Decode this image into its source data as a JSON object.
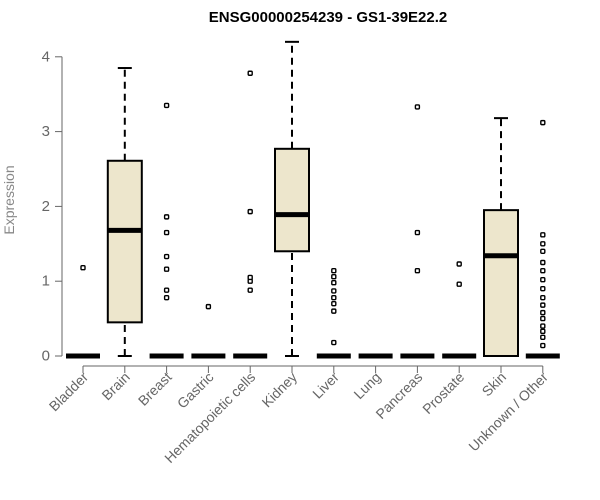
{
  "chart_data": {
    "type": "boxplot",
    "title": "ENSG00000254239 - GS1-39E22.2",
    "ylabel": "Expression",
    "xlabel": "",
    "ylim": [
      0,
      4.2
    ],
    "yticks": [
      "0",
      "1",
      "2",
      "3",
      "4"
    ],
    "categories": [
      "Bladder",
      "Brain",
      "Breast",
      "Gastric",
      "Hematopoietic cells",
      "Kidney",
      "Liver",
      "Lung",
      "Pancreas",
      "Prostate",
      "Skin",
      "Unknown / Other"
    ],
    "box_fill": "#ede6cc",
    "series": [
      {
        "category": "Bladder",
        "min": 0,
        "q1": 0,
        "median": 0,
        "q3": 0,
        "max": 0,
        "outliers": [
          1.18
        ]
      },
      {
        "category": "Brain",
        "min": 0,
        "q1": 0.45,
        "median": 1.68,
        "q3": 2.61,
        "max": 3.85,
        "outliers": []
      },
      {
        "category": "Breast",
        "min": 0,
        "q1": 0,
        "median": 0,
        "q3": 0,
        "max": 0,
        "outliers": [
          0.78,
          0.88,
          1.16,
          1.33,
          1.65,
          1.86,
          3.35
        ]
      },
      {
        "category": "Gastric",
        "min": 0,
        "q1": 0,
        "median": 0,
        "q3": 0,
        "max": 0,
        "outliers": [
          0.66
        ]
      },
      {
        "category": "Hematopoietic cells",
        "min": 0,
        "q1": 0,
        "median": 0,
        "q3": 0,
        "max": 0,
        "outliers": [
          0.88,
          1.0,
          1.05,
          1.93,
          3.78
        ]
      },
      {
        "category": "Kidney",
        "min": 0,
        "q1": 1.4,
        "median": 1.89,
        "q3": 2.77,
        "max": 4.2,
        "outliers": []
      },
      {
        "category": "Liver",
        "min": 0,
        "q1": 0,
        "median": 0,
        "q3": 0,
        "max": 0,
        "outliers": [
          0.18,
          0.6,
          0.7,
          0.78,
          0.87,
          0.98,
          1.06,
          1.14
        ]
      },
      {
        "category": "Lung",
        "min": 0,
        "q1": 0,
        "median": 0,
        "q3": 0,
        "max": 0,
        "outliers": []
      },
      {
        "category": "Pancreas",
        "min": 0,
        "q1": 0,
        "median": 0,
        "q3": 0,
        "max": 0,
        "outliers": [
          1.14,
          1.65,
          3.33
        ]
      },
      {
        "category": "Prostate",
        "min": 0,
        "q1": 0,
        "median": 0,
        "q3": 0,
        "max": 0,
        "outliers": [
          0.96,
          1.23
        ]
      },
      {
        "category": "Skin",
        "min": 0,
        "q1": 0,
        "median": 1.34,
        "q3": 1.95,
        "max": 3.18,
        "outliers": []
      },
      {
        "category": "Unknown / Other",
        "min": 0,
        "q1": 0,
        "median": 0,
        "q3": 0,
        "max": 0,
        "outliers": [
          0.14,
          0.25,
          0.33,
          0.4,
          0.5,
          0.58,
          0.68,
          0.78,
          0.9,
          1.02,
          1.14,
          1.25,
          1.4,
          1.5,
          1.62,
          3.12
        ]
      }
    ]
  }
}
